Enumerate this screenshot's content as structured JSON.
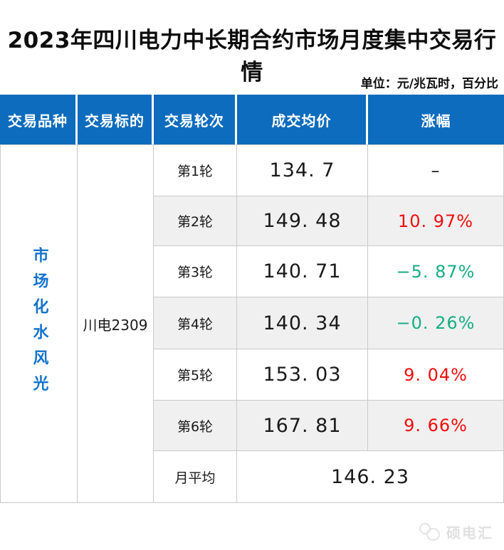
{
  "page": {
    "title": "2023年四川电力中长期合约市场月度集中交易行情",
    "unit_note": "单位：元/兆瓦时，百分比"
  },
  "table": {
    "headers": [
      "交易品种",
      "交易标的",
      "交易轮次",
      "成交均价",
      "涨幅"
    ],
    "variety": "市场化水风光",
    "target": "川电2309",
    "rows": [
      {
        "round": "第1轮",
        "price": "134. 7",
        "change": "–",
        "trend": "neutral"
      },
      {
        "round": "第2轮",
        "price": "149. 48",
        "change": "10. 97%",
        "trend": "up"
      },
      {
        "round": "第3轮",
        "price": "140. 71",
        "change": "−5. 87%",
        "trend": "down"
      },
      {
        "round": "第4轮",
        "price": "140. 34",
        "change": "−0. 26%",
        "trend": "down"
      },
      {
        "round": "第5轮",
        "price": "153. 03",
        "change": "9. 04%",
        "trend": "up"
      },
      {
        "round": "第6轮",
        "price": "167. 81",
        "change": "9. 66%",
        "trend": "up"
      }
    ],
    "avg": {
      "label": "月平均",
      "value": "146. 23"
    }
  },
  "watermark": {
    "text": "硕电汇"
  },
  "colors": {
    "header_blue": "#0d6cbd",
    "variety_blue": "#1273cc",
    "up_red": "#f20c0c",
    "down_green": "#17ad84",
    "alt_row_gray": "#f0f0f0",
    "border_gray": "#c9c9c9"
  },
  "chart_data": {
    "type": "table",
    "title": "2023年四川电力中长期合约市场月度集中交易行情",
    "unit": "元/兆瓦时，百分比",
    "columns": [
      "交易品种",
      "交易标的",
      "交易轮次",
      "成交均价",
      "涨幅"
    ],
    "variety": "市场化水风光",
    "target": "川电2309",
    "rounds": [
      "第1轮",
      "第2轮",
      "第3轮",
      "第4轮",
      "第5轮",
      "第6轮"
    ],
    "avg_prices": [
      134.7,
      149.48,
      140.71,
      140.34,
      153.03,
      167.81
    ],
    "changes_pct": [
      null,
      10.97,
      -5.87,
      -0.26,
      9.04,
      9.66
    ],
    "monthly_average": 146.23
  }
}
